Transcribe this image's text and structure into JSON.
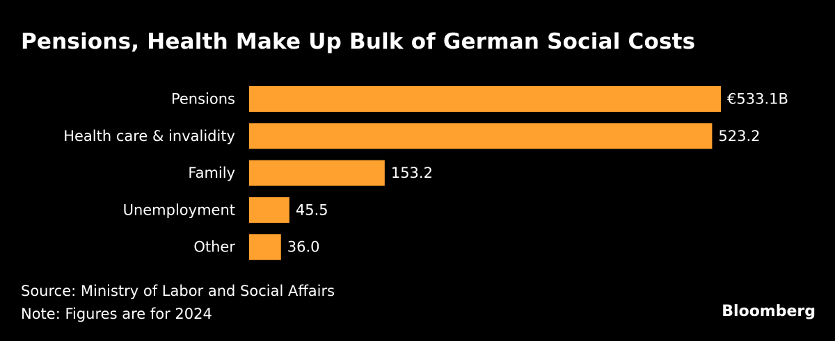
{
  "chart_data": {
    "type": "bar",
    "orientation": "horizontal",
    "title": "Pensions, Health Make Up Bulk of German Social Costs",
    "categories": [
      "Pensions",
      "Health care & invalidity",
      "Family",
      "Unemployment",
      "Other"
    ],
    "values": [
      533.1,
      523.2,
      153.2,
      45.5,
      36.0
    ],
    "value_labels": [
      "€533.1B",
      "523.2",
      "153.2",
      "45.5",
      "36.0"
    ],
    "unit": "€ billions",
    "xlabel": "",
    "ylabel": "",
    "xlim": [
      0,
      533.1
    ],
    "grid": false,
    "bar_color": "#ffa12e"
  },
  "footer": {
    "source": "Source: Ministry of Labor and Social Affairs",
    "note": "Note: Figures are for 2024",
    "brand": "Bloomberg"
  }
}
